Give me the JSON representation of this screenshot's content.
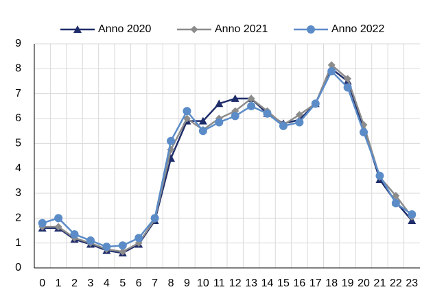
{
  "chart_data": {
    "type": "line",
    "categories": [
      "0",
      "1",
      "2",
      "3",
      "4",
      "5",
      "6",
      "7",
      "8",
      "9",
      "10",
      "11",
      "12",
      "13",
      "14",
      "15",
      "16",
      "17",
      "18",
      "19",
      "20",
      "21",
      "22",
      "23"
    ],
    "series": [
      {
        "name": "Anno 2020",
        "color": "#1f2d6b",
        "marker": "triangle",
        "values": [
          1.6,
          1.6,
          1.15,
          0.95,
          0.7,
          0.6,
          0.95,
          1.9,
          4.4,
          5.9,
          5.9,
          6.6,
          6.8,
          6.8,
          6.2,
          5.8,
          5.95,
          6.6,
          8.0,
          7.5,
          5.6,
          3.55,
          2.65,
          1.9
        ]
      },
      {
        "name": "Anno 2021",
        "color": "#8c8c8c",
        "marker": "diamond",
        "values": [
          1.65,
          1.65,
          1.2,
          1.0,
          0.75,
          0.65,
          1.0,
          1.95,
          4.75,
          6.0,
          5.55,
          6.0,
          6.3,
          6.8,
          6.3,
          5.75,
          6.15,
          6.6,
          8.15,
          7.6,
          5.75,
          3.65,
          2.9,
          2.05
        ]
      },
      {
        "name": "Anno 2022",
        "color": "#5b8cc8",
        "marker": "circle",
        "values": [
          1.8,
          2.0,
          1.35,
          1.1,
          0.85,
          0.9,
          1.2,
          2.0,
          5.1,
          6.3,
          5.5,
          5.85,
          6.1,
          6.5,
          6.2,
          5.7,
          5.85,
          6.6,
          7.9,
          7.25,
          5.45,
          3.7,
          2.6,
          2.15
        ]
      }
    ],
    "ylim": [
      0,
      9
    ],
    "yticks": [
      0,
      1,
      2,
      3,
      4,
      5,
      6,
      7,
      8,
      9
    ],
    "grid": true,
    "legend": "top"
  }
}
